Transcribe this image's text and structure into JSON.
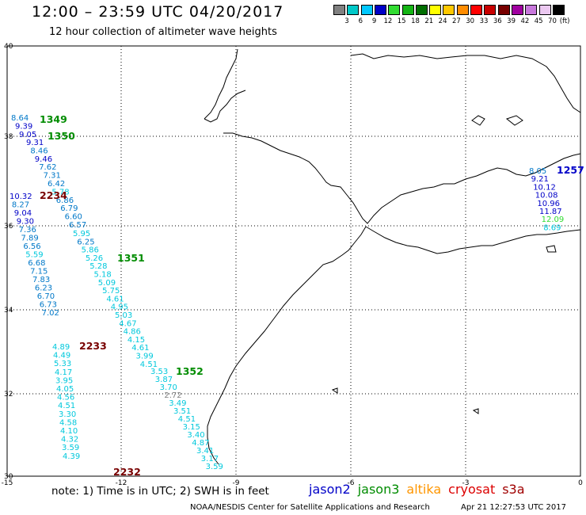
{
  "header": {
    "title": "12:00 – 23:59 UTC 04/20/2017",
    "subtitle": "12 hour collection of altimeter wave heights"
  },
  "legend": {
    "unit": "(ft)",
    "items": [
      {
        "label": "3",
        "color": "#808080"
      },
      {
        "label": "6",
        "color": "#00c8c8"
      },
      {
        "label": "9",
        "color": "#00c8ff"
      },
      {
        "label": "12",
        "color": "#0000c8"
      },
      {
        "label": "15",
        "color": "#32dc32"
      },
      {
        "label": "18",
        "color": "#14b414"
      },
      {
        "label": "21",
        "color": "#006e00"
      },
      {
        "label": "24",
        "color": "#ffff00"
      },
      {
        "label": "27",
        "color": "#ffc800"
      },
      {
        "label": "30",
        "color": "#ff8c00"
      },
      {
        "label": "33",
        "color": "#ff0000"
      },
      {
        "label": "36",
        "color": "#c80000"
      },
      {
        "label": "39",
        "color": "#780000"
      },
      {
        "label": "42",
        "color": "#a000a0"
      },
      {
        "label": "45",
        "color": "#c878dc"
      },
      {
        "label": "70",
        "color": "#ebc8f0"
      },
      {
        "label": "",
        "color": "#000000"
      }
    ]
  },
  "axes": {
    "lat_labels": [
      "40",
      "38",
      "36",
      "34",
      "32",
      "30"
    ],
    "lon_labels": [
      "-15",
      "-12",
      "-9",
      "-6",
      "-3",
      "0"
    ]
  },
  "tracks": [
    {
      "pass": "1349",
      "color": "#008c00",
      "values": [
        {
          "v": "8.64",
          "c": "#0078c8"
        },
        {
          "v": "9.39",
          "c": "#0000c8"
        },
        {
          "v": "9.05",
          "c": "#0000c8"
        }
      ]
    },
    {
      "pass": "1350",
      "color": "#008c00",
      "values": [
        {
          "v": "9.31",
          "c": "#0000c8"
        },
        {
          "v": "8.46",
          "c": "#0078c8"
        },
        {
          "v": "9.46",
          "c": "#0000c8"
        },
        {
          "v": "7.62",
          "c": "#0078c8"
        },
        {
          "v": "7.31",
          "c": "#0078c8"
        },
        {
          "v": "6.42",
          "c": "#0078c8"
        },
        {
          "v": "5.78",
          "c": "#00c8dc"
        },
        {
          "v": "6.86",
          "c": "#0078c8"
        },
        {
          "v": "6.79",
          "c": "#0078c8"
        },
        {
          "v": "6.60",
          "c": "#0078c8"
        },
        {
          "v": "6.57",
          "c": "#0078c8"
        }
      ]
    },
    {
      "pass": "1351",
      "color": "#008c00",
      "values": [
        {
          "v": "5.95",
          "c": "#00c8dc"
        },
        {
          "v": "6.25",
          "c": "#0078c8"
        },
        {
          "v": "5.86",
          "c": "#00c8dc"
        },
        {
          "v": "5.26",
          "c": "#00c8dc"
        },
        {
          "v": "5.28",
          "c": "#00c8dc"
        },
        {
          "v": "5.18",
          "c": "#00c8dc"
        },
        {
          "v": "5.09",
          "c": "#00c8dc"
        },
        {
          "v": "5.75",
          "c": "#00c8dc"
        },
        {
          "v": "4.61",
          "c": "#00c8dc"
        },
        {
          "v": "4.95",
          "c": "#00c8dc"
        },
        {
          "v": "5.03",
          "c": "#00c8dc"
        },
        {
          "v": "4.67",
          "c": "#00c8dc"
        },
        {
          "v": "4.86",
          "c": "#00c8dc"
        },
        {
          "v": "4.15",
          "c": "#00c8dc"
        },
        {
          "v": "4.61",
          "c": "#00c8dc"
        },
        {
          "v": "3.99",
          "c": "#00c8dc"
        },
        {
          "v": "4.51",
          "c": "#00c8dc"
        }
      ]
    },
    {
      "pass": "1352",
      "color": "#008c00",
      "values": [
        {
          "v": "3.53",
          "c": "#00c8dc"
        },
        {
          "v": "3.87",
          "c": "#00c8dc"
        },
        {
          "v": "3.70",
          "c": "#00c8dc"
        },
        {
          "v": "2.72",
          "c": "#808080"
        },
        {
          "v": "3.49",
          "c": "#00c8dc"
        },
        {
          "v": "3.51",
          "c": "#00c8dc"
        },
        {
          "v": "4.51",
          "c": "#00c8dc"
        },
        {
          "v": "3.15",
          "c": "#00c8dc"
        },
        {
          "v": "3.40",
          "c": "#00c8dc"
        },
        {
          "v": "4.87",
          "c": "#00c8dc"
        },
        {
          "v": "3.41",
          "c": "#00c8dc"
        },
        {
          "v": "3.17",
          "c": "#00c8dc"
        },
        {
          "v": "3.59",
          "c": "#00c8dc"
        }
      ]
    },
    {
      "pass": "2234",
      "color": "#780000",
      "values": [
        {
          "v": "10.32",
          "c": "#0000c8"
        },
        {
          "v": "8.27",
          "c": "#0078c8"
        },
        {
          "v": "9.04",
          "c": "#0000c8"
        },
        {
          "v": "9.30",
          "c": "#0000c8"
        },
        {
          "v": "7.36",
          "c": "#0078c8"
        },
        {
          "v": "7.89",
          "c": "#0078c8"
        },
        {
          "v": "6.56",
          "c": "#0078c8"
        },
        {
          "v": "5.59",
          "c": "#00c8dc"
        },
        {
          "v": "6.68",
          "c": "#0078c8"
        },
        {
          "v": "7.15",
          "c": "#0078c8"
        },
        {
          "v": "7.83",
          "c": "#0078c8"
        },
        {
          "v": "6.23",
          "c": "#0078c8"
        },
        {
          "v": "6.70",
          "c": "#0078c8"
        },
        {
          "v": "6.73",
          "c": "#0078c8"
        },
        {
          "v": "7.02",
          "c": "#0078c8"
        }
      ]
    },
    {
      "pass": "2233",
      "color": "#780000",
      "values": [
        {
          "v": "4.89",
          "c": "#00c8dc"
        },
        {
          "v": "4.49",
          "c": "#00c8dc"
        },
        {
          "v": "5.33",
          "c": "#00c8dc"
        },
        {
          "v": "4.17",
          "c": "#00c8dc"
        },
        {
          "v": "3.95",
          "c": "#00c8dc"
        },
        {
          "v": "4.05",
          "c": "#00c8dc"
        },
        {
          "v": "4.56",
          "c": "#00c8dc"
        },
        {
          "v": "4.51",
          "c": "#00c8dc"
        },
        {
          "v": "3.30",
          "c": "#00c8dc"
        },
        {
          "v": "4.58",
          "c": "#00c8dc"
        },
        {
          "v": "4.10",
          "c": "#00c8dc"
        },
        {
          "v": "4.32",
          "c": "#00c8dc"
        },
        {
          "v": "3.59",
          "c": "#00c8dc"
        },
        {
          "v": "4.39",
          "c": "#00c8dc"
        }
      ]
    },
    {
      "pass": "2232",
      "color": "#780000",
      "values": []
    },
    {
      "pass": "1257",
      "color": "#0000c8",
      "values": [
        {
          "v": "8.05",
          "c": "#0078c8"
        },
        {
          "v": "9.21",
          "c": "#0000c8"
        },
        {
          "v": "10.12",
          "c": "#0000c8"
        },
        {
          "v": "10.08",
          "c": "#0000c8"
        },
        {
          "v": "10.96",
          "c": "#0000c8"
        },
        {
          "v": "11.87",
          "c": "#0000c8"
        },
        {
          "v": "12.09",
          "c": "#32dc32"
        },
        {
          "v": "8.69",
          "c": "#00c8dc"
        }
      ]
    }
  ],
  "footer": {
    "note": "note:  1) Time is in UTC;  2) SWH is in feet",
    "credit": "NOAA/NESDIS Center for Satellite Applications and Research",
    "timestamp": "Apr 21 12:27:53 UTC 2017",
    "satellites": [
      {
        "name": "jason2",
        "color": "#0000c8"
      },
      {
        "name": "jason3",
        "color": "#008c00"
      },
      {
        "name": "altika",
        "color": "#ff9600"
      },
      {
        "name": "cryosat",
        "color": "#dc0000"
      },
      {
        "name": "s3a",
        "color": "#a00000"
      }
    ]
  }
}
